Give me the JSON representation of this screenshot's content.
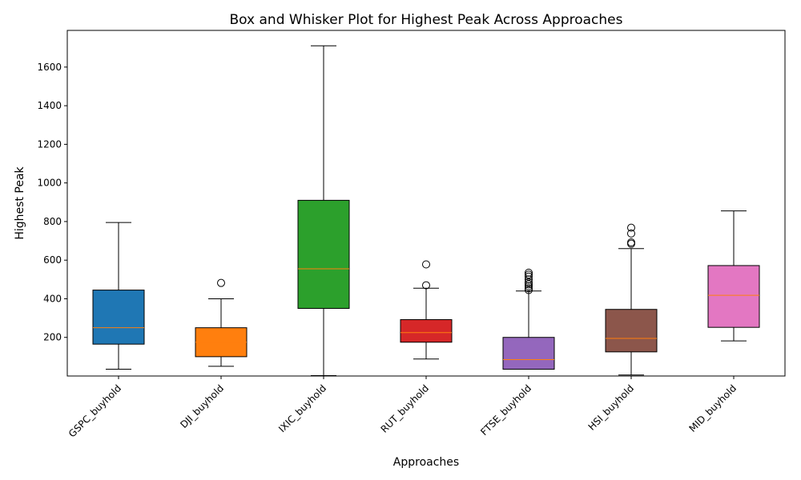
{
  "chart_data": {
    "type": "box",
    "title": "Box and Whisker Plot for Highest Peak Across Approaches",
    "xlabel": "Approaches",
    "ylabel": "Highest Peak",
    "ylim": [
      0,
      1790
    ],
    "yticks": [
      200,
      400,
      600,
      800,
      1000,
      1200,
      1400,
      1600
    ],
    "grid": false,
    "legend": "none",
    "categories": [
      "GSPC_buyhold",
      "DJI_buyhold",
      "IXIC_buyhold",
      "RUT_buyhold",
      "FTSE_buyhold",
      "HSI_buyhold",
      "MID_buyhold"
    ],
    "boxes": [
      {
        "name": "GSPC_buyhold",
        "color": "#1f77b4",
        "whisker_low": 35,
        "q1": 165,
        "median": 250,
        "q3": 445,
        "whisker_high": 795,
        "outliers": []
      },
      {
        "name": "DJI_buyhold",
        "color": "#ff7f0e",
        "whisker_low": 50,
        "q1": 100,
        "median": 175,
        "q3": 250,
        "whisker_high": 400,
        "outliers": [
          482
        ]
      },
      {
        "name": "IXIC_buyhold",
        "color": "#2ca02c",
        "whisker_low": 2,
        "q1": 350,
        "median": 555,
        "q3": 910,
        "whisker_high": 1710,
        "outliers": []
      },
      {
        "name": "RUT_buyhold",
        "color": "#d62728",
        "whisker_low": 88,
        "q1": 175,
        "median": 225,
        "q3": 292,
        "whisker_high": 455,
        "outliers": [
          470,
          578
        ]
      },
      {
        "name": "FTSE_buyhold",
        "color": "#9467bd",
        "whisker_low": 35,
        "q1": 35,
        "median": 85,
        "q3": 200,
        "whisker_high": 440,
        "outliers": [
          445,
          455,
          465,
          475,
          485,
          500,
          515,
          525,
          535
        ]
      },
      {
        "name": "HSI_buyhold",
        "color": "#8c564b",
        "whisker_low": 5,
        "q1": 125,
        "median": 195,
        "q3": 345,
        "whisker_high": 660,
        "outliers": [
          685,
          692,
          738,
          768
        ]
      },
      {
        "name": "MID_buyhold",
        "color": "#e377c2",
        "whisker_low": 182,
        "q1": 252,
        "median": 418,
        "q3": 572,
        "whisker_high": 855,
        "outliers": []
      }
    ],
    "median_color": "#ff7f0e"
  }
}
